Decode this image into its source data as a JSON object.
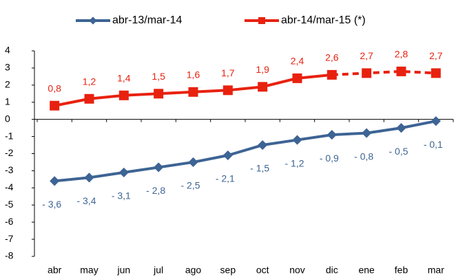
{
  "chart_data": {
    "type": "line",
    "categories": [
      "abr",
      "may",
      "jun",
      "jul",
      "ago",
      "sep",
      "oct",
      "nov",
      "dic",
      "ene",
      "feb",
      "mar"
    ],
    "series": [
      {
        "name": "abr-13/mar-14",
        "color": "#3d6494",
        "marker": "diamond",
        "values": [
          -3.6,
          -3.4,
          -3.1,
          -2.8,
          -2.5,
          -2.1,
          -1.5,
          -1.2,
          -0.9,
          -0.8,
          -0.5,
          -0.1
        ],
        "value_labels": [
          "- 3,6",
          "- 3,4",
          "- 3,1",
          "- 2,8",
          "- 2,5",
          "- 2,1",
          "- 1,5",
          "- 1,2",
          "- 0,9",
          "- 0,8",
          "- 0,5",
          "- 0,1"
        ]
      },
      {
        "name": "abr-14/mar-15 (*)",
        "color": "#e8210f",
        "marker": "square",
        "dashed_from": "dic",
        "values": [
          0.8,
          1.2,
          1.4,
          1.5,
          1.6,
          1.7,
          1.9,
          2.4,
          2.6,
          2.7,
          2.8,
          2.7
        ],
        "value_labels": [
          "0,8",
          "1,2",
          "1,4",
          "1,5",
          "1,6",
          "1,7",
          "1,9",
          "2,4",
          "2,6",
          "2,7",
          "2,8",
          "2,7"
        ]
      }
    ],
    "ylim": [
      -8,
      4
    ],
    "yticks": [
      -8,
      -7,
      -6,
      -5,
      -4,
      -3,
      -2,
      -1,
      0,
      1,
      2,
      3,
      4
    ],
    "grid": false,
    "legend": "top"
  }
}
